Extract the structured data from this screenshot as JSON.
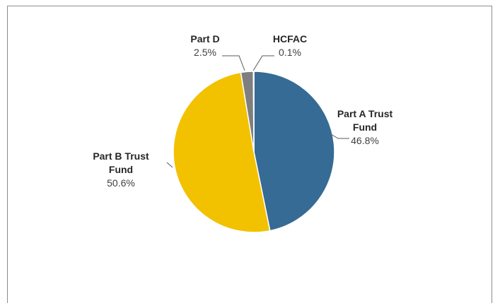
{
  "chart_data": {
    "type": "pie",
    "categories": [
      "Part A Trust Fund",
      "Part B Trust Fund",
      "Part D",
      "HCFAC"
    ],
    "values": [
      46.8,
      50.6,
      2.5,
      0.1
    ],
    "value_labels": [
      "46.8%",
      "50.6%",
      "2.5%",
      "0.1%"
    ],
    "colors": [
      "#356b94",
      "#f2c100",
      "#7f7f7f",
      "#e0e0e0"
    ]
  }
}
